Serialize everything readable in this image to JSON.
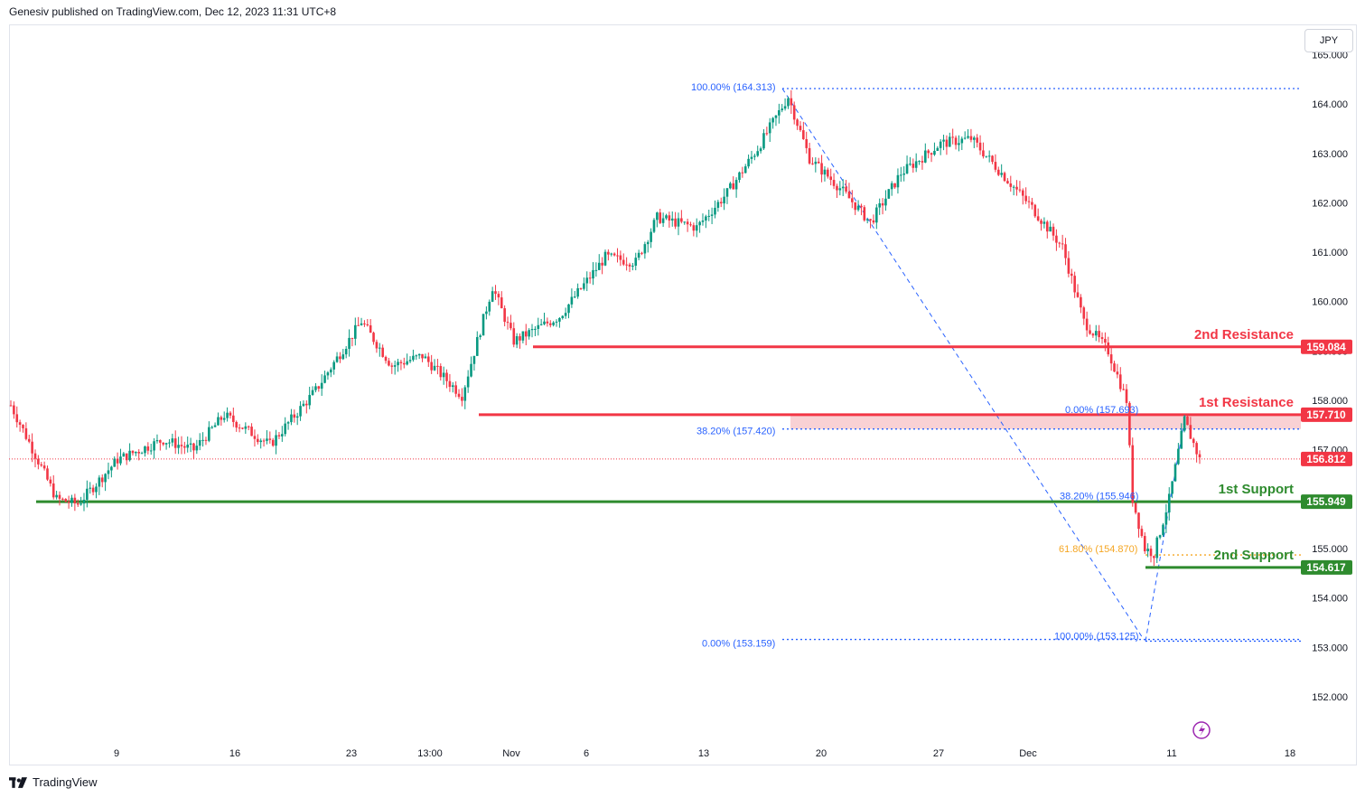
{
  "header": {
    "publisher_line": "Genesiv published on TradingView.com, Dec 12, 2023 11:31 UTC+8"
  },
  "currency_button": "JPY",
  "footer": {
    "brand": "TradingView"
  },
  "colors": {
    "up": "#089981",
    "down": "#f23645",
    "resistance": "#f23645",
    "support": "#2e8b2e",
    "fib": "#2962ff",
    "fib_gold": "#f5a623",
    "resistance_zone": "#f8c5c9",
    "axis_text": "#131722",
    "grid_text": "#131722"
  },
  "chart_data": {
    "type": "candlestick",
    "symbol_currency": "JPY",
    "y_axis": {
      "range": [
        151.5,
        165.1
      ],
      "ticks": [
        "152.000",
        "153.000",
        "154.000",
        "155.000",
        "156.000",
        "157.000",
        "158.000",
        "159.000",
        "160.000",
        "161.000",
        "162.000",
        "163.000",
        "164.000",
        "165.000"
      ]
    },
    "x_axis": {
      "ticks": [
        "9",
        "16",
        "23",
        "13:00",
        "Nov",
        "6",
        "13",
        "20",
        "27",
        "Dec",
        "11",
        "18"
      ]
    },
    "last_price": {
      "value": 156.812,
      "label": "156.812"
    },
    "levels": [
      {
        "name": "2nd Resistance",
        "value": 159.084,
        "label": "159.084",
        "kind": "resistance"
      },
      {
        "name": "1st Resistance",
        "value": 157.71,
        "label": "157.710",
        "kind": "resistance"
      },
      {
        "name": "1st Support",
        "value": 155.949,
        "label": "155.949",
        "kind": "support"
      },
      {
        "name": "2nd Support",
        "value": 154.617,
        "label": "154.617",
        "kind": "support"
      }
    ],
    "fib_labels": [
      {
        "text": "100.00% (164.313)",
        "value": 164.313
      },
      {
        "text": "38.20% (157.420)",
        "value": 157.42
      },
      {
        "text": "0.00% (153.159)",
        "value": 153.159
      },
      {
        "text": "0.00% (157.693)",
        "value": 157.693
      },
      {
        "text": "38.20% (155.946)",
        "value": 155.946
      },
      {
        "text": "61.80% (154.870)",
        "value": 154.87
      },
      {
        "text": "100.00% (153.125)",
        "value": 153.125
      }
    ],
    "price_path": [
      {
        "x": 0,
        "v": 157.9
      },
      {
        "x": 8,
        "v": 156.9
      },
      {
        "x": 15,
        "v": 156.0
      },
      {
        "x": 22,
        "v": 155.9
      },
      {
        "x": 35,
        "v": 156.8
      },
      {
        "x": 50,
        "v": 157.2
      },
      {
        "x": 60,
        "v": 157.0
      },
      {
        "x": 70,
        "v": 157.7
      },
      {
        "x": 85,
        "v": 157.1
      },
      {
        "x": 100,
        "v": 158.2
      },
      {
        "x": 115,
        "v": 159.6
      },
      {
        "x": 125,
        "v": 158.7
      },
      {
        "x": 135,
        "v": 158.9
      },
      {
        "x": 148,
        "v": 158.1
      },
      {
        "x": 158,
        "v": 160.3
      },
      {
        "x": 165,
        "v": 159.2
      },
      {
        "x": 180,
        "v": 159.7
      },
      {
        "x": 195,
        "v": 160.9
      },
      {
        "x": 205,
        "v": 160.8
      },
      {
        "x": 212,
        "v": 161.7
      },
      {
        "x": 225,
        "v": 161.5
      },
      {
        "x": 235,
        "v": 162.2
      },
      {
        "x": 245,
        "v": 163.1
      },
      {
        "x": 255,
        "v": 164.15
      },
      {
        "x": 262,
        "v": 162.9
      },
      {
        "x": 272,
        "v": 162.3
      },
      {
        "x": 282,
        "v": 161.6
      },
      {
        "x": 292,
        "v": 162.6
      },
      {
        "x": 305,
        "v": 163.2
      },
      {
        "x": 315,
        "v": 163.3
      },
      {
        "x": 325,
        "v": 162.6
      },
      {
        "x": 335,
        "v": 161.9
      },
      {
        "x": 345,
        "v": 161.1
      },
      {
        "x": 352,
        "v": 159.6
      },
      {
        "x": 360,
        "v": 159.0
      },
      {
        "x": 366,
        "v": 158.0
      },
      {
        "x": 368,
        "v": 156.0
      },
      {
        "x": 372,
        "v": 155.0
      },
      {
        "x": 375,
        "v": 154.9
      },
      {
        "x": 380,
        "v": 156.0
      },
      {
        "x": 385,
        "v": 157.6
      },
      {
        "x": 390,
        "v": 156.8
      }
    ]
  }
}
